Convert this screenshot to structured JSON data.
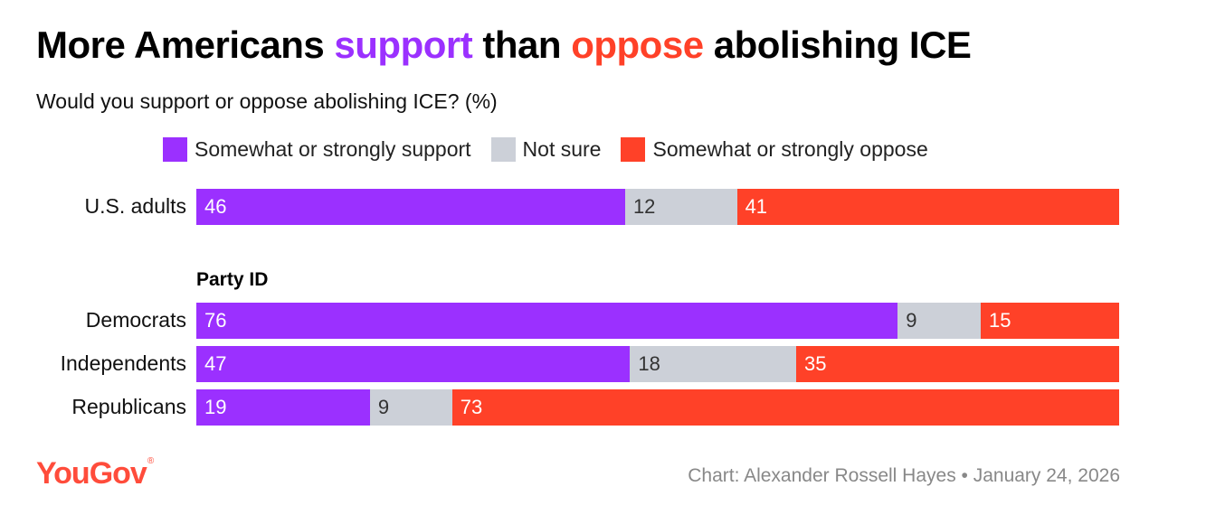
{
  "title": {
    "part1": "More Americans ",
    "support_word": "support",
    "part2": " than ",
    "oppose_word": "oppose",
    "part3": " abolishing ICE"
  },
  "subtitle": "Would you support or oppose abolishing ICE? (%)",
  "colors": {
    "support": "#9b30ff",
    "not_sure": "#ccd0d8",
    "oppose": "#ff4128"
  },
  "chart_data": {
    "type": "bar",
    "orientation": "horizontal",
    "stacked": true,
    "title": "More Americans support than oppose abolishing ICE",
    "subtitle": "Would you support or oppose abolishing ICE? (%)",
    "legend": [
      "Somewhat or strongly support",
      "Not sure",
      "Somewhat or strongly oppose"
    ],
    "legend_position": "top",
    "group_label": "Party ID",
    "categories": [
      "U.S. adults",
      "Democrats",
      "Independents",
      "Republicans"
    ],
    "series": [
      {
        "name": "Somewhat or strongly support",
        "values": [
          46,
          76,
          47,
          19
        ]
      },
      {
        "name": "Not sure",
        "values": [
          12,
          9,
          18,
          9
        ]
      },
      {
        "name": "Somewhat or strongly oppose",
        "values": [
          41,
          15,
          35,
          73
        ]
      }
    ],
    "xlim": [
      0,
      100
    ]
  },
  "footer": {
    "logo": "YouGov",
    "credit": "Chart: Alexander Rossell Hayes • January 24, 2026"
  }
}
